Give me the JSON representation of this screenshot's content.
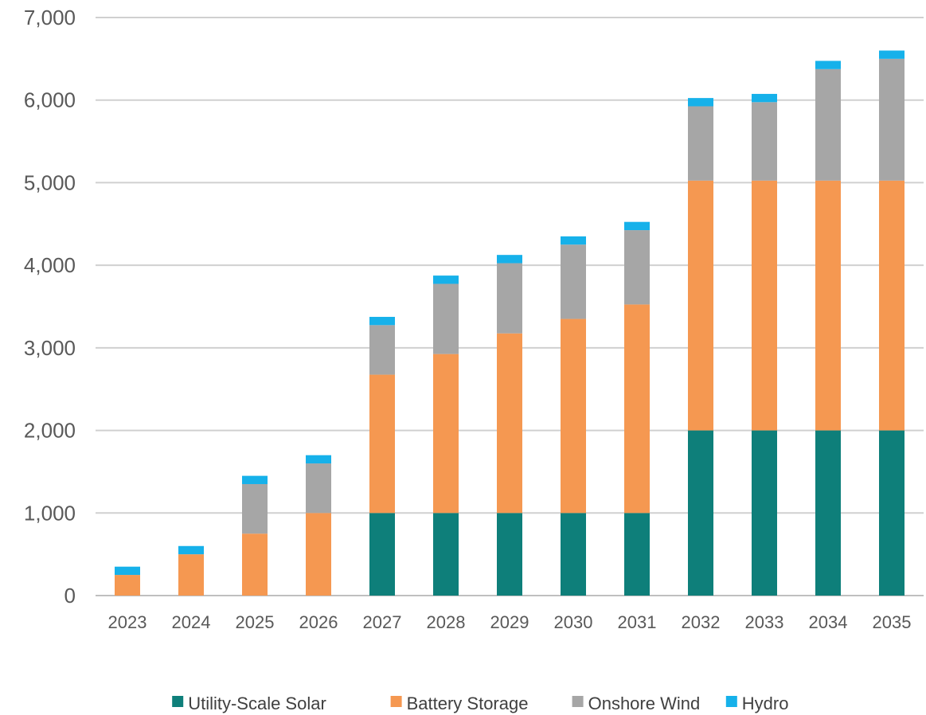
{
  "chart_data": {
    "type": "bar",
    "stacked": true,
    "categories": [
      "2023",
      "2024",
      "2025",
      "2026",
      "2027",
      "2028",
      "2029",
      "2030",
      "2031",
      "2032",
      "2033",
      "2034",
      "2035"
    ],
    "series": [
      {
        "name": "Utility-Scale Solar",
        "color": "#0e7f7a",
        "values": [
          0,
          0,
          0,
          0,
          1000,
          1000,
          1000,
          1000,
          1000,
          2000,
          2000,
          2000,
          2000
        ]
      },
      {
        "name": "Battery Storage",
        "color": "#f59851",
        "values": [
          250,
          500,
          750,
          1000,
          1675,
          1925,
          2175,
          2350,
          2525,
          3025,
          3025,
          3025,
          3025
        ]
      },
      {
        "name": "Onshore Wind",
        "color": "#a6a6a6",
        "values": [
          0,
          0,
          600,
          600,
          600,
          850,
          850,
          900,
          900,
          900,
          950,
          1350,
          1475
        ]
      },
      {
        "name": "Hydro",
        "color": "#16b1ea",
        "values": [
          100,
          100,
          100,
          100,
          100,
          100,
          100,
          100,
          100,
          100,
          100,
          100,
          100
        ]
      }
    ],
    "ylim": [
      0,
      7000
    ],
    "yticks": [
      0,
      1000,
      2000,
      3000,
      4000,
      5000,
      6000,
      7000
    ],
    "ytick_labels": [
      "0",
      "1,000",
      "2,000",
      "3,000",
      "4,000",
      "5,000",
      "6,000",
      "7,000"
    ],
    "grid": true,
    "legend_position": "bottom"
  }
}
